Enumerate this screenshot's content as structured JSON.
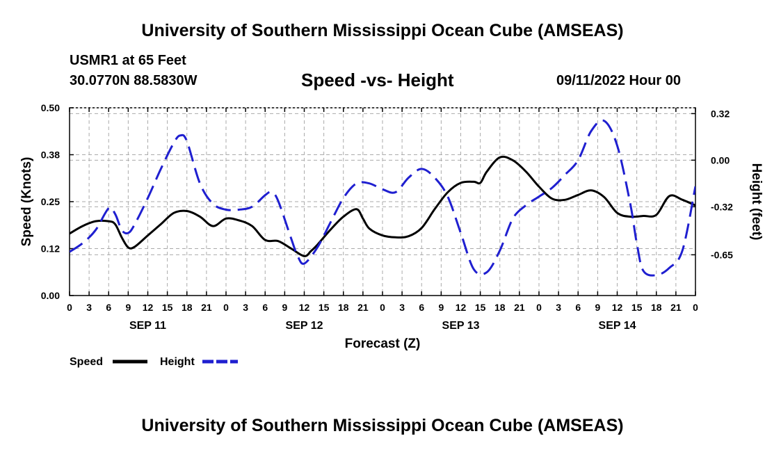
{
  "header": {
    "title": "University of Southern Mississippi Ocean Cube (AMSEAS)",
    "station": "USMR1 at 65 Feet",
    "coords": "30.0770N  88.5830W",
    "chart_title": "Speed -vs- Height",
    "datetime": "09/11/2022 Hour 00"
  },
  "footer": {
    "title": "University of Southern Mississippi Ocean Cube (AMSEAS)"
  },
  "colors": {
    "speed": "#000000",
    "height": "#1f1fd0",
    "grid": "#aaaaaa"
  },
  "chart_data": {
    "type": "line",
    "title": "Speed -vs- Height",
    "xlabel": "Forecast (Z)",
    "ylabel": "Speed (Knots)",
    "y2label": "Height (feet)",
    "xlim": [
      0,
      96
    ],
    "ylim": [
      0,
      0.5
    ],
    "y2lim": [
      -0.93,
      0.36
    ],
    "x_tick_labels": [
      "0",
      "3",
      "6",
      "9",
      "12",
      "15",
      "18",
      "21",
      "0",
      "3",
      "6",
      "9",
      "12",
      "15",
      "18",
      "21",
      "0",
      "3",
      "6",
      "9",
      "12",
      "15",
      "18",
      "21",
      "0",
      "3",
      "6",
      "9",
      "12",
      "15",
      "18",
      "21",
      "0"
    ],
    "y_ticks": [
      "0.00",
      "0.12",
      "0.25",
      "0.38",
      "0.50"
    ],
    "y_tick_values": [
      0,
      0.125,
      0.25,
      0.375,
      0.5
    ],
    "y2_ticks": [
      "0.32",
      "0.00",
      "-0.32",
      "-0.65"
    ],
    "y2_tick_values": [
      0.32,
      0.0,
      -0.32,
      -0.65
    ],
    "day_labels": [
      {
        "label": "SEP 11",
        "x": 12
      },
      {
        "label": "SEP 12",
        "x": 36
      },
      {
        "label": "SEP 13",
        "x": 60
      },
      {
        "label": "SEP 14",
        "x": 84
      }
    ],
    "grid": true,
    "legend": [
      {
        "name": "Speed",
        "style": "solid"
      },
      {
        "name": "Height",
        "style": "dashed"
      }
    ],
    "series": [
      {
        "name": "Speed",
        "axis": "left",
        "style": "solid",
        "x": [
          0,
          2,
          4,
          6,
          7,
          8,
          9,
          10,
          12,
          14,
          16,
          18,
          20,
          22,
          24,
          26,
          28,
          30,
          32,
          34,
          36,
          37,
          38,
          40,
          42,
          44,
          45,
          46,
          48,
          50,
          52,
          54,
          56,
          58,
          60,
          62,
          63,
          64,
          66,
          68,
          70,
          72,
          74,
          76,
          78,
          80,
          82,
          84,
          86,
          88,
          90,
          92,
          94,
          96
        ],
        "values": [
          0.165,
          0.185,
          0.198,
          0.198,
          0.19,
          0.155,
          0.128,
          0.13,
          0.16,
          0.19,
          0.22,
          0.225,
          0.21,
          0.185,
          0.205,
          0.2,
          0.185,
          0.148,
          0.145,
          0.125,
          0.105,
          0.118,
          0.135,
          0.175,
          0.21,
          0.23,
          0.205,
          0.178,
          0.16,
          0.155,
          0.158,
          0.18,
          0.23,
          0.275,
          0.3,
          0.303,
          0.3,
          0.33,
          0.368,
          0.36,
          0.33,
          0.29,
          0.258,
          0.255,
          0.268,
          0.28,
          0.262,
          0.22,
          0.21,
          0.212,
          0.215,
          0.265,
          0.255,
          0.24
        ]
      },
      {
        "name": "Height",
        "axis": "right",
        "style": "dashed",
        "x": [
          0,
          2,
          4,
          6,
          7,
          8,
          9,
          10,
          12,
          14,
          16,
          17,
          18,
          20,
          22,
          24,
          26,
          28,
          30,
          31,
          32,
          34,
          35,
          36,
          38,
          40,
          42,
          44,
          46,
          48,
          50,
          52,
          54,
          56,
          58,
          60,
          62,
          64,
          66,
          68,
          70,
          72,
          74,
          76,
          78,
          80,
          82,
          84,
          86,
          87,
          88,
          90,
          92,
          94,
          96
        ],
        "values": [
          -0.63,
          -0.57,
          -0.48,
          -0.33,
          -0.37,
          -0.48,
          -0.5,
          -0.44,
          -0.26,
          -0.06,
          0.12,
          0.17,
          0.13,
          -0.16,
          -0.3,
          -0.34,
          -0.34,
          -0.32,
          -0.24,
          -0.22,
          -0.28,
          -0.54,
          -0.66,
          -0.71,
          -0.6,
          -0.43,
          -0.26,
          -0.16,
          -0.16,
          -0.2,
          -0.22,
          -0.12,
          -0.06,
          -0.12,
          -0.25,
          -0.5,
          -0.75,
          -0.77,
          -0.62,
          -0.4,
          -0.31,
          -0.25,
          -0.19,
          -0.1,
          0.0,
          0.2,
          0.27,
          0.1,
          -0.3,
          -0.57,
          -0.76,
          -0.79,
          -0.74,
          -0.62,
          -0.18
        ]
      }
    ]
  }
}
